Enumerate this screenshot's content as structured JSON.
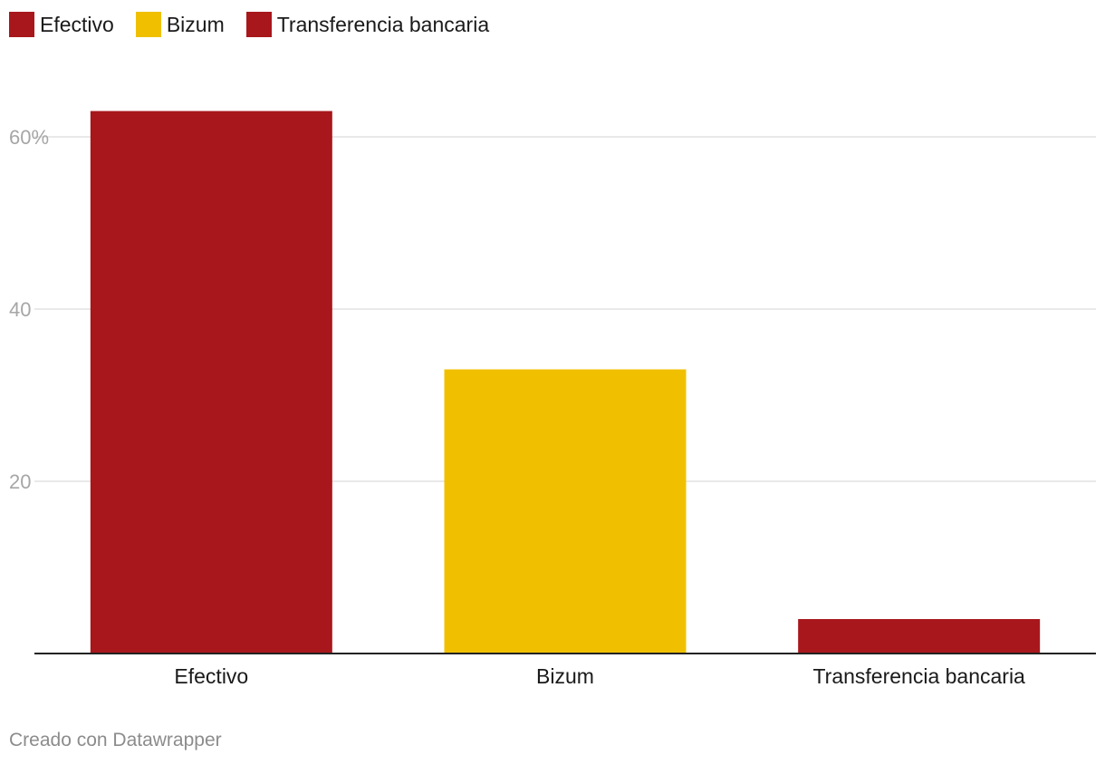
{
  "chart_data": {
    "type": "bar",
    "categories": [
      "Efectivo",
      "Bizum",
      "Transferencia bancaria"
    ],
    "values": [
      63,
      33,
      4
    ],
    "colors": [
      "#a8171c",
      "#f0c000",
      "#a8171c"
    ],
    "ylim": [
      0,
      60
    ],
    "yticks": [
      20,
      40,
      60
    ],
    "ytick_labels": [
      "20",
      "40",
      "60%"
    ],
    "grid": true,
    "legend": {
      "placement": "top-left",
      "entries": [
        {
          "label": "Efectivo",
          "color": "#a8171c"
        },
        {
          "label": "Bizum",
          "color": "#f0c000"
        },
        {
          "label": "Transferencia bancaria",
          "color": "#a8171c"
        }
      ]
    }
  },
  "footer": "Creado con Datawrapper"
}
